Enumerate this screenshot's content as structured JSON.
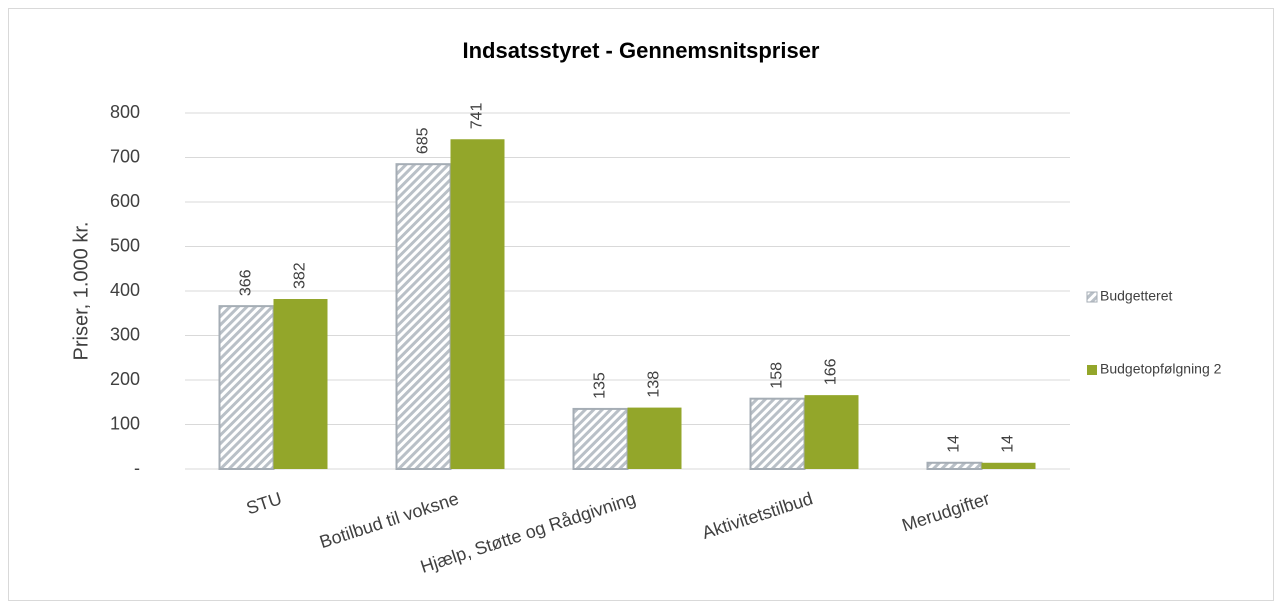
{
  "chart_data": {
    "type": "bar",
    "title": "Indsatsstyret - Gennemsnitspriser",
    "y_label": "Priser, 1.000 kr.",
    "categories": [
      "STU",
      "Botilbud til voksne",
      "Hjælp, Støtte og Rådgivning",
      "Aktivitetstilbud",
      "Merudgifter"
    ],
    "series": [
      {
        "name": "Budgetteret",
        "color": "#a5adb5",
        "pattern": "diagonal",
        "values": [
          366,
          685,
          135,
          158,
          14
        ]
      },
      {
        "name": "Budgetopfølgning 2",
        "color": "#93a62a",
        "values": [
          382,
          741,
          138,
          166,
          14
        ]
      }
    ],
    "ylim": [
      0,
      800
    ],
    "yticks": [
      {
        "value": 0,
        "label": "-"
      },
      100,
      200,
      300,
      400,
      500,
      600,
      700,
      800
    ],
    "grid": true,
    "legend": "right"
  }
}
